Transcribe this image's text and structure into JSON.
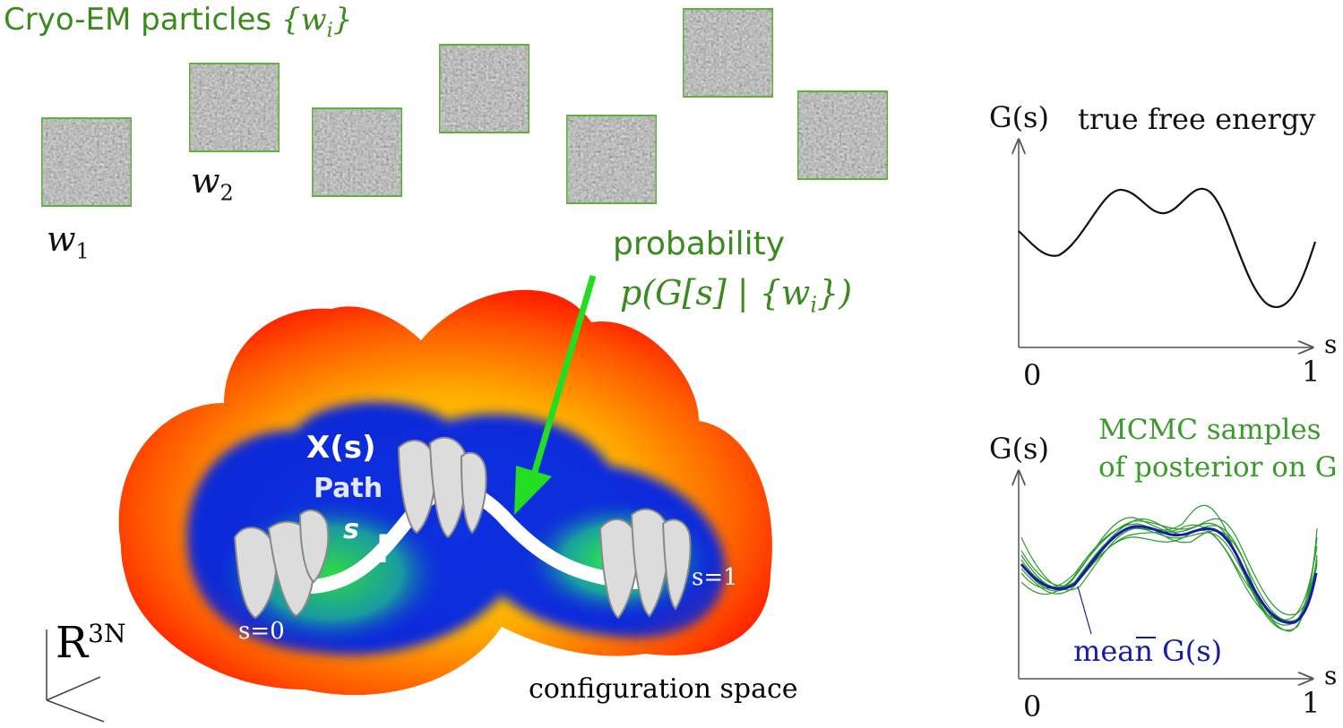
{
  "header": {
    "title_prefix": "Cryo-EM particles ",
    "title_symbol": "{w",
    "title_sub": "i",
    "title_suffix": "}"
  },
  "particles": {
    "w1_base": "w",
    "w1_sub": "1",
    "w2_base": "w",
    "w2_sub": "2"
  },
  "probability": {
    "label": "probability",
    "expr_prefix": "p(G[s] | {w",
    "expr_sub": "i",
    "expr_suffix": "})"
  },
  "landscape": {
    "path_title": "X(s)",
    "path_label": "Path",
    "path_var": "s",
    "start_label": "s=0",
    "end_label": "s=1",
    "space_label": "configuration space",
    "space_symbol": "R",
    "space_sup": "3N"
  },
  "graph_top": {
    "ylabel": "G(s)",
    "title": "true free energy",
    "xlabel": "s",
    "xmin": "0",
    "xmax": "1"
  },
  "graph_bottom": {
    "ylabel": "G(s)",
    "title_line1": "MCMC samples",
    "title_line2": "of posterior on G",
    "mean_label": "mean ",
    "mean_symbol": "G(s)",
    "xlabel": "s",
    "xmin": "0",
    "xmax": "1"
  },
  "colors": {
    "green_text": "#3a8a1e",
    "arrow_green": "#22dd22",
    "patch_border": "#5db33a",
    "landscape_outer": "#ff3300",
    "landscape_inner": "#0a2bd9",
    "landscape_well": "#2ed84a",
    "mean_curve": "#1a1aaa",
    "sample_curve": "#2a9a2a"
  }
}
